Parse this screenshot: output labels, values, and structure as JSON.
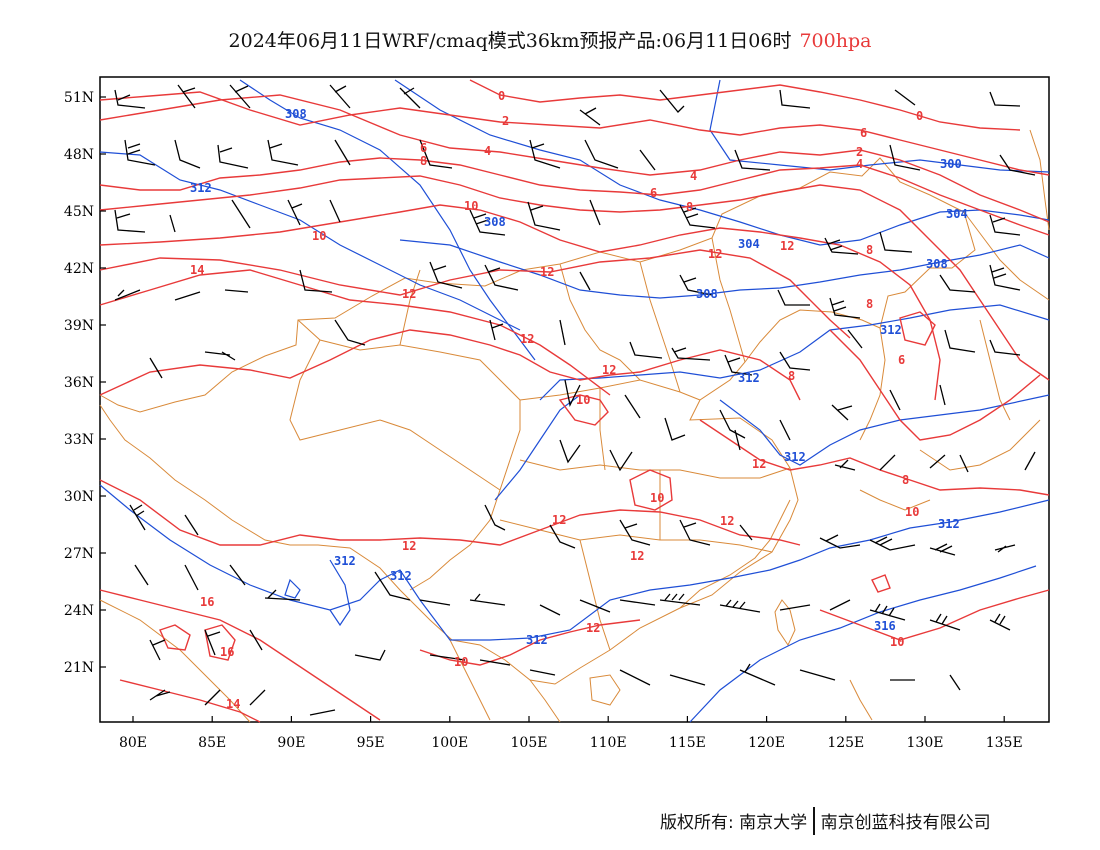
{
  "title": {
    "main": "2024年06月11日WRF/cmaq模式36km预报产品:06月11日06时",
    "level": "700hpa"
  },
  "axes": {
    "lat_labels": [
      "51N",
      "48N",
      "45N",
      "42N",
      "39N",
      "36N",
      "33N",
      "30N",
      "27N",
      "24N",
      "21N"
    ],
    "lon_labels": [
      "80E",
      "85E",
      "90E",
      "95E",
      "100E",
      "105E",
      "110E",
      "115E",
      "120E",
      "125E",
      "130E",
      "135E"
    ]
  },
  "contour_labels": {
    "height_blue": [
      "308",
      "312",
      "308",
      "304",
      "300",
      "304",
      "308",
      "308",
      "312",
      "312",
      "312",
      "312",
      "312",
      "312",
      "312",
      "316"
    ],
    "temperature_red": [
      "0",
      "2",
      "4",
      "6",
      "8",
      "4",
      "6",
      "6",
      "8",
      "10",
      "10",
      "12",
      "12",
      "14",
      "12",
      "12",
      "12",
      "10",
      "12",
      "12",
      "10",
      "12",
      "12",
      "10",
      "8",
      "8",
      "8",
      "6",
      "4",
      "2",
      "0",
      "12",
      "16",
      "16",
      "14",
      "12",
      "10",
      "12",
      "10",
      "8"
    ]
  },
  "colors": {
    "height_contour": "#1f4fd6",
    "temperature_contour": "#e83a3a",
    "boundary": "#d98a3a",
    "wind_barb": "#000000"
  },
  "footer": {
    "copyright": "版权所有: 南京大学",
    "company": "南京创蓝科技有限公司"
  }
}
